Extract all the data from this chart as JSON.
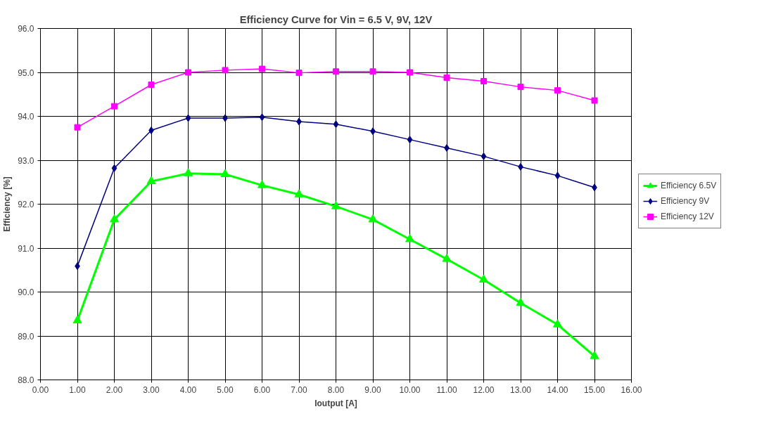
{
  "chart_data": {
    "type": "line",
    "title": "Efficiency Curve for Vin = 6.5 V, 9V, 12V",
    "xlabel": "Ioutput [A]",
    "ylabel": "Efficiency [%]",
    "x": [
      1,
      2,
      3,
      4,
      5,
      6,
      7,
      8,
      9,
      10,
      11,
      12,
      13,
      14,
      15
    ],
    "series": [
      {
        "name": "Efficiency 6.5V",
        "color": "#00ff00",
        "marker": "triangle",
        "values": [
          89.35,
          91.65,
          92.52,
          92.7,
          92.68,
          92.43,
          92.22,
          91.95,
          91.65,
          91.2,
          90.75,
          90.28,
          89.75,
          89.26,
          88.54
        ]
      },
      {
        "name": "Efficiency 9V",
        "color": "#000080",
        "marker": "diamond",
        "values": [
          90.59,
          92.82,
          93.68,
          93.96,
          93.96,
          93.98,
          93.88,
          93.82,
          93.66,
          93.47,
          93.28,
          93.09,
          92.85,
          92.65,
          92.38
        ]
      },
      {
        "name": "Efficiency 12V",
        "color": "#ff00ff",
        "marker": "square",
        "values": [
          93.75,
          94.23,
          94.72,
          95.0,
          95.05,
          95.08,
          94.99,
          95.02,
          95.02,
          95.0,
          94.88,
          94.8,
          94.67,
          94.59,
          94.36
        ]
      }
    ],
    "xlim": [
      0,
      16
    ],
    "ylim": [
      88,
      96
    ],
    "xticks": [
      {
        "value": 0,
        "label": "0.00"
      },
      {
        "value": 1,
        "label": "1.00"
      },
      {
        "value": 2,
        "label": "2.00"
      },
      {
        "value": 3,
        "label": "3.00"
      },
      {
        "value": 4,
        "label": "4.00"
      },
      {
        "value": 5,
        "label": "5.00"
      },
      {
        "value": 6,
        "label": "6.00"
      },
      {
        "value": 7,
        "label": "7.00"
      },
      {
        "value": 8,
        "label": "8.00"
      },
      {
        "value": 9,
        "label": "9.00"
      },
      {
        "value": 10,
        "label": "10.00"
      },
      {
        "value": 11,
        "label": "11.00"
      },
      {
        "value": 12,
        "label": "12.00"
      },
      {
        "value": 13,
        "label": "13.00"
      },
      {
        "value": 14,
        "label": "14.00"
      },
      {
        "value": 15,
        "label": "15.00"
      },
      {
        "value": 16,
        "label": "16.00"
      }
    ],
    "yticks": [
      {
        "value": 88,
        "label": "88.0"
      },
      {
        "value": 89,
        "label": "89.0"
      },
      {
        "value": 90,
        "label": "90.0"
      },
      {
        "value": 91,
        "label": "91.0"
      },
      {
        "value": 92,
        "label": "92.0"
      },
      {
        "value": 93,
        "label": "93.0"
      },
      {
        "value": 94,
        "label": "94.0"
      },
      {
        "value": 95,
        "label": "95.0"
      },
      {
        "value": 96,
        "label": "96.0"
      }
    ],
    "grid": true,
    "legend": "right",
    "line_style": "solid"
  }
}
